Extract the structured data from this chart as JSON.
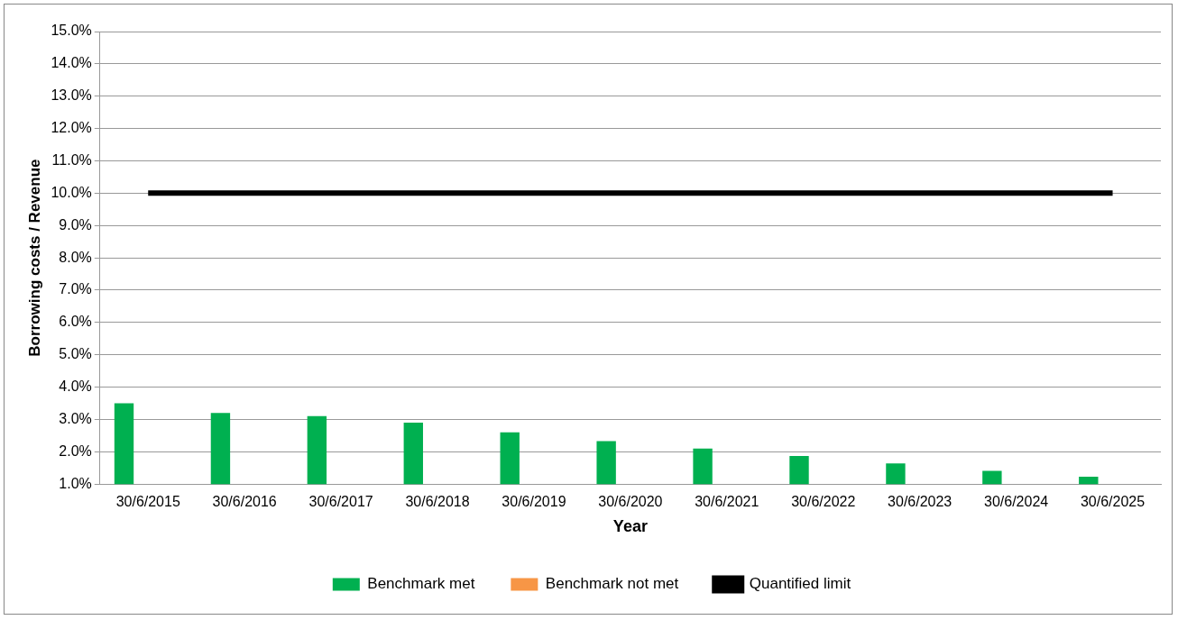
{
  "chart_data": {
    "type": "bar",
    "xlabel": "Year",
    "ylabel": "Borrowing costs / Revenue",
    "categories": [
      "30/6/2015",
      "30/6/2016",
      "30/6/2017",
      "30/6/2018",
      "30/6/2019",
      "30/6/2020",
      "30/6/2021",
      "30/6/2022",
      "30/6/2023",
      "30/6/2024",
      "30/6/2025"
    ],
    "series": [
      {
        "name": "Benchmark met",
        "color": "#00b050",
        "values": [
          3.5,
          3.2,
          3.1,
          2.9,
          2.6,
          2.33,
          2.1,
          1.87,
          1.64,
          1.41,
          1.23
        ]
      },
      {
        "name": "Benchmark not met",
        "color": "#f79646",
        "values": [
          null,
          null,
          null,
          null,
          null,
          null,
          null,
          null,
          null,
          null,
          null
        ]
      },
      {
        "name": "Quantified limit",
        "type": "line",
        "color": "#000000",
        "marker": "none",
        "values": [
          10,
          10,
          10,
          10,
          10,
          10,
          10,
          10,
          10,
          10,
          10
        ]
      }
    ],
    "ylim": [
      1,
      15
    ],
    "yticks": [
      {
        "value": 1,
        "label": "1.0%"
      },
      {
        "value": 2,
        "label": "2.0%"
      },
      {
        "value": 3,
        "label": "3.0%"
      },
      {
        "value": 4,
        "label": "4.0%"
      },
      {
        "value": 5,
        "label": "5.0%"
      },
      {
        "value": 6,
        "label": "6.0%"
      },
      {
        "value": 7,
        "label": "7.0%"
      },
      {
        "value": 8,
        "label": "8.0%"
      },
      {
        "value": 9,
        "label": "9.0%"
      },
      {
        "value": 10,
        "label": "10.0%"
      },
      {
        "value": 11,
        "label": "11.0%"
      },
      {
        "value": 12,
        "label": "12.0%"
      },
      {
        "value": 13,
        "label": "13.0%"
      },
      {
        "value": 14,
        "label": "14.0%"
      },
      {
        "value": 15,
        "label": "15.0%"
      }
    ],
    "grid": "y",
    "legend": "bottom"
  }
}
